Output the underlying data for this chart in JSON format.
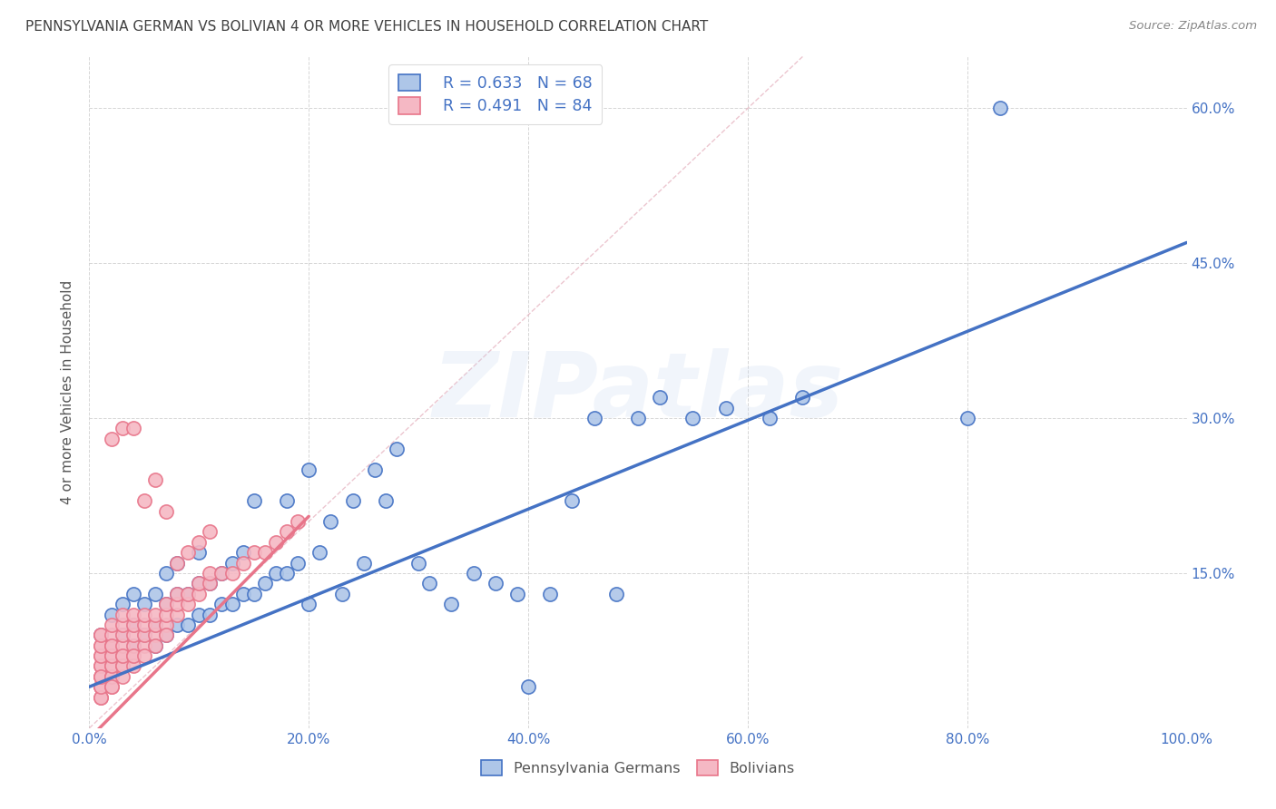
{
  "title": "PENNSYLVANIA GERMAN VS BOLIVIAN 4 OR MORE VEHICLES IN HOUSEHOLD CORRELATION CHART",
  "source": "Source: ZipAtlas.com",
  "ylabel": "4 or more Vehicles in Household",
  "background_color": "#ffffff",
  "watermark_text": "ZIPatlas",
  "blue_line_color": "#4472c4",
  "pink_line_color": "#e8758a",
  "blue_dot_face": "#aec6e8",
  "blue_dot_edge": "#4472c4",
  "pink_dot_face": "#f5b8c4",
  "pink_dot_edge": "#e8758a",
  "title_color": "#404040",
  "source_color": "#888888",
  "tick_color": "#4472c4",
  "ylabel_color": "#555555",
  "legend_text_color": "#4472c4",
  "R_blue": 0.633,
  "N_blue": 68,
  "R_pink": 0.491,
  "N_pink": 84,
  "xlim": [
    0.0,
    1.0
  ],
  "ylim": [
    0.0,
    0.65
  ],
  "xtick_vals": [
    0.0,
    0.2,
    0.4,
    0.6,
    0.8,
    1.0
  ],
  "xtick_labels": [
    "0.0%",
    "20.0%",
    "40.0%",
    "60.0%",
    "80.0%",
    "100.0%"
  ],
  "ytick_vals": [
    0.15,
    0.3,
    0.45,
    0.6
  ],
  "ytick_labels": [
    "15.0%",
    "30.0%",
    "45.0%",
    "60.0%"
  ],
  "blue_line": {
    "x0": 0.0,
    "y0": 0.04,
    "x1": 1.0,
    "y1": 0.47
  },
  "pink_line": {
    "x0": 0.0,
    "y0": -0.01,
    "x1": 0.2,
    "y1": 0.205
  },
  "diag_line": {
    "x0": 0.0,
    "y0": 0.0,
    "x1": 0.65,
    "y1": 0.65
  },
  "blue_x": [
    0.01,
    0.02,
    0.02,
    0.03,
    0.03,
    0.04,
    0.04,
    0.04,
    0.05,
    0.05,
    0.06,
    0.06,
    0.06,
    0.07,
    0.07,
    0.07,
    0.08,
    0.08,
    0.08,
    0.09,
    0.09,
    0.1,
    0.1,
    0.1,
    0.11,
    0.11,
    0.12,
    0.12,
    0.13,
    0.13,
    0.14,
    0.14,
    0.15,
    0.15,
    0.16,
    0.17,
    0.18,
    0.18,
    0.19,
    0.2,
    0.2,
    0.21,
    0.22,
    0.23,
    0.24,
    0.25,
    0.26,
    0.27,
    0.28,
    0.3,
    0.31,
    0.33,
    0.35,
    0.37,
    0.39,
    0.4,
    0.42,
    0.44,
    0.46,
    0.48,
    0.5,
    0.52,
    0.55,
    0.58,
    0.62,
    0.65,
    0.8,
    0.83
  ],
  "blue_y": [
    0.09,
    0.08,
    0.11,
    0.09,
    0.12,
    0.08,
    0.1,
    0.13,
    0.09,
    0.12,
    0.08,
    0.1,
    0.13,
    0.09,
    0.12,
    0.15,
    0.1,
    0.13,
    0.16,
    0.1,
    0.13,
    0.11,
    0.14,
    0.17,
    0.11,
    0.14,
    0.12,
    0.15,
    0.12,
    0.16,
    0.13,
    0.17,
    0.13,
    0.22,
    0.14,
    0.15,
    0.15,
    0.22,
    0.16,
    0.12,
    0.25,
    0.17,
    0.2,
    0.13,
    0.22,
    0.16,
    0.25,
    0.22,
    0.27,
    0.16,
    0.14,
    0.12,
    0.15,
    0.14,
    0.13,
    0.04,
    0.13,
    0.22,
    0.3,
    0.13,
    0.3,
    0.32,
    0.3,
    0.31,
    0.3,
    0.32,
    0.3,
    0.6
  ],
  "pink_x": [
    0.01,
    0.01,
    0.01,
    0.01,
    0.01,
    0.01,
    0.01,
    0.01,
    0.01,
    0.01,
    0.01,
    0.01,
    0.01,
    0.01,
    0.01,
    0.01,
    0.02,
    0.02,
    0.02,
    0.02,
    0.02,
    0.02,
    0.02,
    0.02,
    0.02,
    0.02,
    0.02,
    0.02,
    0.03,
    0.03,
    0.03,
    0.03,
    0.03,
    0.03,
    0.03,
    0.03,
    0.03,
    0.04,
    0.04,
    0.04,
    0.04,
    0.04,
    0.04,
    0.04,
    0.05,
    0.05,
    0.05,
    0.05,
    0.05,
    0.06,
    0.06,
    0.06,
    0.06,
    0.07,
    0.07,
    0.07,
    0.07,
    0.08,
    0.08,
    0.08,
    0.09,
    0.09,
    0.1,
    0.1,
    0.11,
    0.11,
    0.12,
    0.13,
    0.14,
    0.15,
    0.16,
    0.17,
    0.18,
    0.19,
    0.02,
    0.03,
    0.04,
    0.05,
    0.06,
    0.07,
    0.08,
    0.09,
    0.1,
    0.11
  ],
  "pink_y": [
    0.04,
    0.05,
    0.06,
    0.07,
    0.08,
    0.03,
    0.09,
    0.04,
    0.05,
    0.06,
    0.07,
    0.03,
    0.08,
    0.04,
    0.09,
    0.05,
    0.05,
    0.06,
    0.07,
    0.08,
    0.09,
    0.04,
    0.1,
    0.05,
    0.06,
    0.07,
    0.08,
    0.04,
    0.06,
    0.07,
    0.08,
    0.09,
    0.1,
    0.05,
    0.11,
    0.06,
    0.07,
    0.07,
    0.08,
    0.09,
    0.1,
    0.11,
    0.06,
    0.07,
    0.08,
    0.09,
    0.1,
    0.11,
    0.07,
    0.09,
    0.1,
    0.11,
    0.08,
    0.1,
    0.11,
    0.12,
    0.09,
    0.11,
    0.12,
    0.13,
    0.12,
    0.13,
    0.13,
    0.14,
    0.14,
    0.15,
    0.15,
    0.15,
    0.16,
    0.17,
    0.17,
    0.18,
    0.19,
    0.2,
    0.28,
    0.29,
    0.29,
    0.22,
    0.24,
    0.21,
    0.16,
    0.17,
    0.18,
    0.19
  ]
}
